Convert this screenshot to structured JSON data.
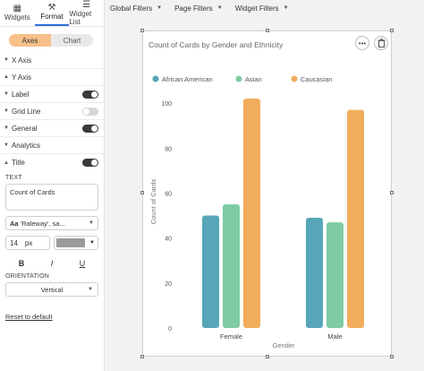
{
  "panel": {
    "tabs": [
      {
        "icon": "widgets-icon",
        "label": "Widgets"
      },
      {
        "icon": "format-icon",
        "label": "Format"
      },
      {
        "icon": "widget-list-icon",
        "label": "Widget List"
      }
    ],
    "segment": {
      "left": "Axes",
      "right": "Chart"
    },
    "sections": {
      "x_axis": "X Axis",
      "y_axis": "Y Axis",
      "label": "Label",
      "grid_line": "Grid Line",
      "general": "General",
      "analytics": "Analytics",
      "title": "Title"
    },
    "text_label": "TEXT",
    "title_text": "Count of Cards",
    "font_family": "'Raleway', sa...",
    "font_icon": "Aa",
    "font_size": "14",
    "font_unit": "px",
    "bold": "B",
    "italic": "I",
    "underline": "U",
    "orientation_label": "ORIENTATION",
    "orientation_value": "Vertical",
    "reset": "Reset to default"
  },
  "topbar": {
    "global_filters": "Global Filters",
    "page_filters": "Page Filters",
    "widget_filters": "Widget Filters"
  },
  "card": {
    "more_icon": "•••",
    "delete_icon": "trash-icon"
  },
  "colors": {
    "african_american": "#56a6b8",
    "asian": "#7fcca3",
    "caucasian": "#f2ad5c"
  },
  "chart_data": {
    "type": "bar",
    "title": "Count of Cards by Gender and Ethnicity",
    "categories": [
      "Female",
      "Male"
    ],
    "series": [
      {
        "name": "African American",
        "values": [
          50,
          49
        ]
      },
      {
        "name": "Asian",
        "values": [
          55,
          47
        ]
      },
      {
        "name": "Caucasian",
        "values": [
          102,
          97
        ]
      }
    ],
    "xlabel": "Gender",
    "ylabel": "Count of Cards",
    "yticks": [
      0,
      20,
      40,
      60,
      80,
      100
    ],
    "ylim": [
      0,
      108
    ],
    "legend": "top-left",
    "grid": false
  }
}
